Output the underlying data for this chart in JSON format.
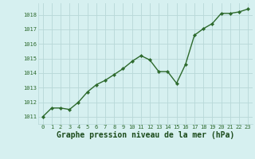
{
  "x": [
    0,
    1,
    2,
    3,
    4,
    5,
    6,
    7,
    8,
    9,
    10,
    11,
    12,
    13,
    14,
    15,
    16,
    17,
    18,
    19,
    20,
    21,
    22,
    23
  ],
  "y": [
    1011.0,
    1011.6,
    1011.6,
    1011.5,
    1012.0,
    1012.7,
    1013.2,
    1013.5,
    1013.9,
    1014.3,
    1014.8,
    1015.2,
    1014.9,
    1014.1,
    1014.1,
    1013.3,
    1014.6,
    1016.6,
    1017.05,
    1017.4,
    1018.1,
    1018.1,
    1018.2,
    1018.4
  ],
  "line_color": "#2d6a2d",
  "marker": "D",
  "marker_size": 2.2,
  "bg_color": "#d6f0f0",
  "grid_color": "#b8d8d8",
  "xlabel": "Graphe pression niveau de la mer (hPa)",
  "xlabel_color": "#1a4a1a",
  "tick_color": "#2d6a2d",
  "ylim": [
    1010.5,
    1018.8
  ],
  "xlim": [
    -0.5,
    23.5
  ],
  "yticks": [
    1011,
    1012,
    1013,
    1014,
    1015,
    1016,
    1017,
    1018
  ],
  "xticks": [
    0,
    1,
    2,
    3,
    4,
    5,
    6,
    7,
    8,
    9,
    10,
    11,
    12,
    13,
    14,
    15,
    16,
    17,
    18,
    19,
    20,
    21,
    22,
    23
  ],
  "tick_fontsize": 5.0,
  "xlabel_fontsize": 7.0,
  "linewidth": 1.0
}
